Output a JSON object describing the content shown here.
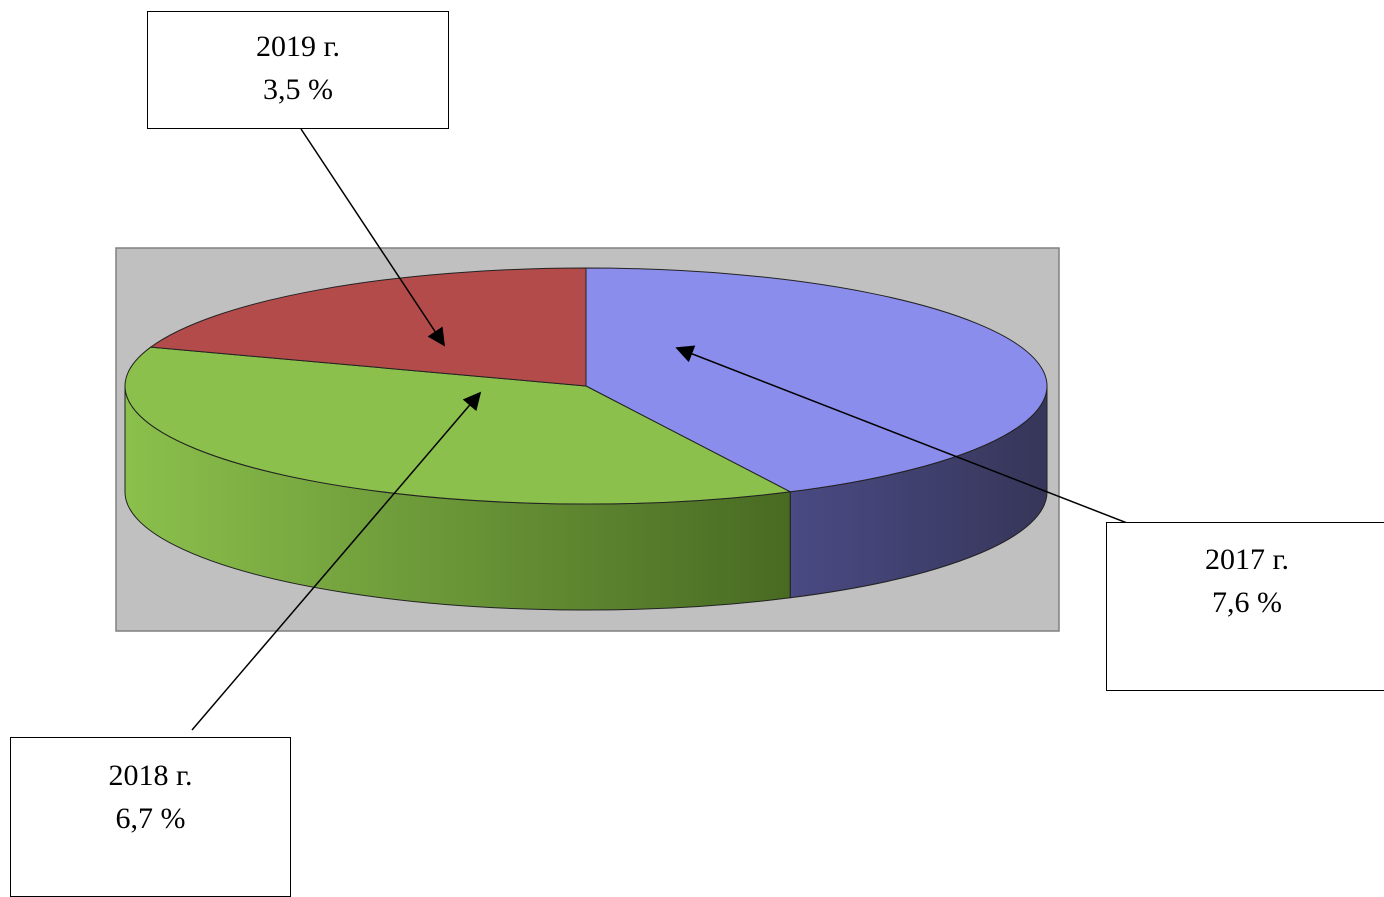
{
  "chart_data": {
    "type": "pie",
    "style": "3d",
    "categories": [
      "2017 г.",
      "2018 г.",
      "2019 г."
    ],
    "values": [
      7.6,
      6.7,
      3.5
    ],
    "value_labels": [
      "7,6 %",
      "6,7 %",
      "3,5 %"
    ],
    "colors": {
      "2017 г.": "#8b8ded",
      "2018 г.": "#8bc04c",
      "2019 г.": "#b24b4a"
    },
    "side_colors": {
      "2017 г.": "#3d3c66",
      "2018 г.": "#4c6c28",
      "2019 г.": "#6e2b2a"
    },
    "plot_background": "#c0c0c0",
    "legend": "none",
    "labels_as_callouts": true
  }
}
